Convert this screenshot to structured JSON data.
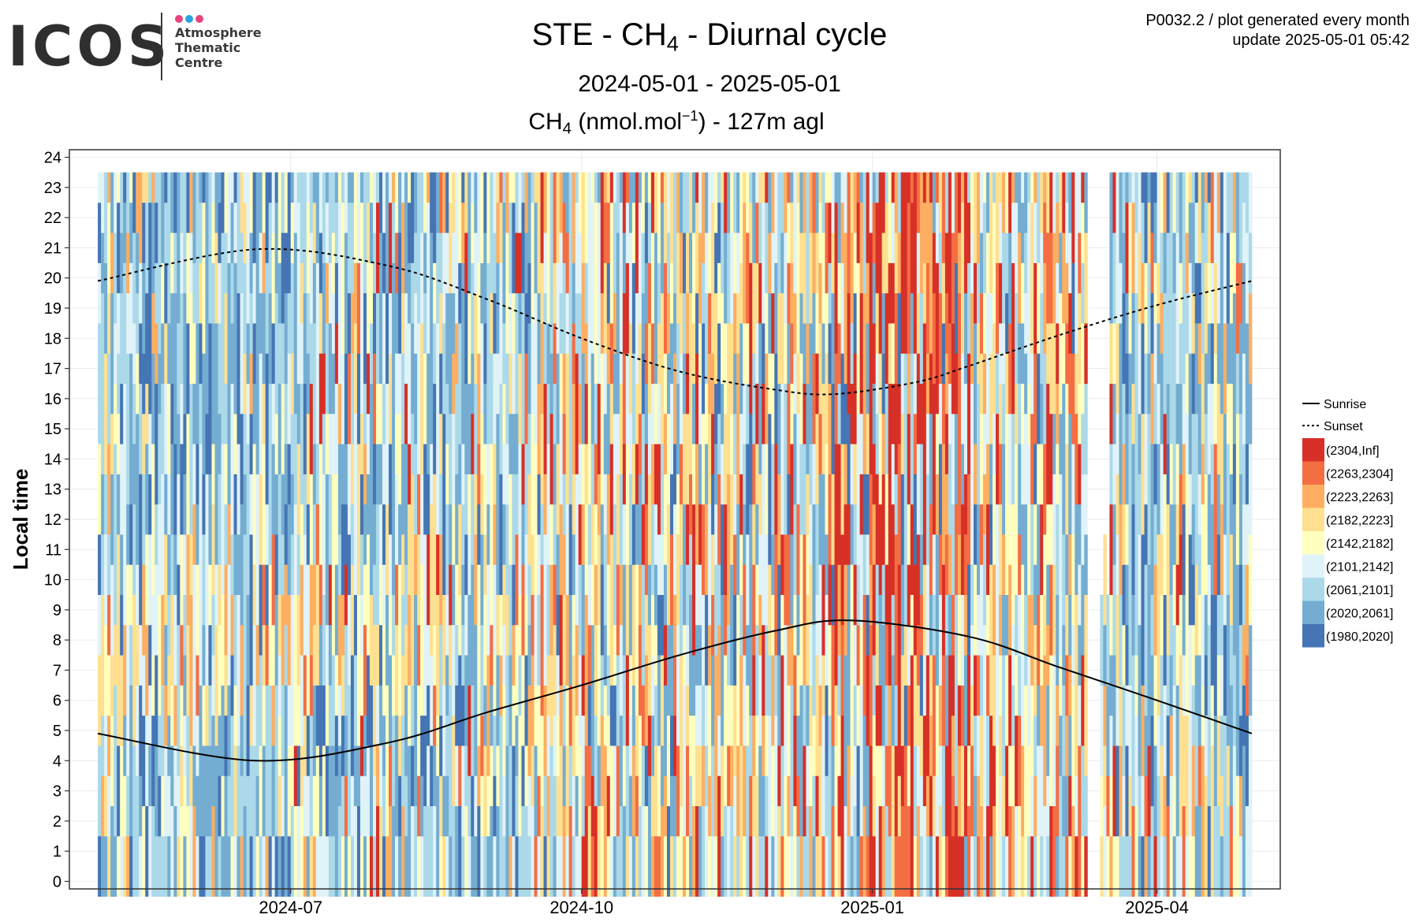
{
  "logo": {
    "wordmark": "ICOS",
    "lines": [
      "Atmosphere",
      "Thematic",
      "Centre"
    ],
    "dot_colors": [
      "#e8437e",
      "#2aa3e0",
      "#e8437e"
    ]
  },
  "header": {
    "title_prefix": "STE - CH",
    "title_sub": "4",
    "title_suffix": " - Diurnal cycle",
    "date_range": "2024-05-01 - 2025-05-01",
    "meta_line1": "P0032.2 / plot generated every month",
    "meta_line2": "update  2025-05-01 05:42"
  },
  "plot_label": {
    "species": "CH",
    "species_sub": "4",
    "unit_open": " (nmol.mol",
    "unit_sup": "−1",
    "unit_close": ") - 127m agl"
  },
  "chart_data": {
    "type": "heatmap",
    "ylabel": "Local time",
    "xlabel": "",
    "x_range": [
      "2024-05-01",
      "2025-05-01"
    ],
    "x_ticks": [
      "2024-07",
      "2024-10",
      "2025-01",
      "2025-04"
    ],
    "x_tick_dates": [
      "2024-07-01",
      "2024-10-01",
      "2025-01-01",
      "2025-04-01"
    ],
    "y_range": [
      0,
      24
    ],
    "y_ticks": [
      0,
      1,
      2,
      3,
      4,
      5,
      6,
      7,
      8,
      9,
      10,
      11,
      12,
      13,
      14,
      15,
      16,
      17,
      18,
      19,
      20,
      21,
      22,
      23,
      24
    ],
    "grid": true,
    "legend_position": "right",
    "legend_lines": [
      {
        "label": "Sunrise",
        "style": "solid"
      },
      {
        "label": "Sunset",
        "style": "dotted"
      }
    ],
    "bins": [
      {
        "label": "(2304,Inf]",
        "color": "#d73027"
      },
      {
        "label": "(2263,2304]",
        "color": "#f46d43"
      },
      {
        "label": "(2223,2263]",
        "color": "#fdae61"
      },
      {
        "label": "(2182,2223]",
        "color": "#fee090"
      },
      {
        "label": "(2142,2182]",
        "color": "#ffffbf"
      },
      {
        "label": "(2101,2142]",
        "color": "#e0f3f8"
      },
      {
        "label": "(2061,2101]",
        "color": "#abd9e9"
      },
      {
        "label": "(2020,2061]",
        "color": "#74add1"
      },
      {
        "label": "(1980,2020]",
        "color": "#4575b4"
      }
    ],
    "sunrise": [
      {
        "date": "2024-05-01",
        "hour": 4.9
      },
      {
        "date": "2024-06-20",
        "hour": 4.0
      },
      {
        "date": "2024-08-01",
        "hour": 4.6
      },
      {
        "date": "2024-09-01",
        "hour": 5.6
      },
      {
        "date": "2024-10-01",
        "hour": 6.5
      },
      {
        "date": "2024-11-01",
        "hour": 7.5
      },
      {
        "date": "2024-12-01",
        "hour": 8.3
      },
      {
        "date": "2024-12-25",
        "hour": 8.65
      },
      {
        "date": "2025-02-01",
        "hour": 8.1
      },
      {
        "date": "2025-03-01",
        "hour": 7.1
      },
      {
        "date": "2025-04-01",
        "hour": 6.0
      },
      {
        "date": "2025-05-01",
        "hour": 4.9
      }
    ],
    "sunset": [
      {
        "date": "2024-05-01",
        "hour": 19.9
      },
      {
        "date": "2024-06-20",
        "hour": 20.95
      },
      {
        "date": "2024-08-01",
        "hour": 20.4
      },
      {
        "date": "2024-09-01",
        "hour": 19.3
      },
      {
        "date": "2024-10-01",
        "hour": 18.0
      },
      {
        "date": "2024-11-01",
        "hour": 16.9
      },
      {
        "date": "2024-12-01",
        "hour": 16.3
      },
      {
        "date": "2024-12-20",
        "hour": 16.15
      },
      {
        "date": "2025-01-15",
        "hour": 16.55
      },
      {
        "date": "2025-02-01",
        "hour": 17.1
      },
      {
        "date": "2025-03-01",
        "hour": 18.1
      },
      {
        "date": "2025-04-01",
        "hour": 19.1
      },
      {
        "date": "2025-05-01",
        "hour": 19.9
      }
    ],
    "missing_periods": [
      {
        "start": "2025-03-10",
        "end": "2025-03-14"
      },
      {
        "start": "2025-03-14",
        "end": "2025-03-17",
        "hours": [
          10,
          24
        ]
      }
    ],
    "periods": [
      {
        "start": "2024-05-01",
        "end": "2024-07-01",
        "hours": [
          0,
          5
        ],
        "bins_weights": [
          0,
          0,
          1,
          2,
          3,
          6,
          10,
          9,
          4
        ]
      },
      {
        "start": "2024-05-01",
        "end": "2024-07-01",
        "hours": [
          5,
          10
        ],
        "bins_weights": [
          0,
          1,
          3,
          6,
          7,
          6,
          5,
          3,
          1
        ]
      },
      {
        "start": "2024-05-01",
        "end": "2024-07-01",
        "hours": [
          10,
          24
        ],
        "bins_weights": [
          0,
          0,
          1,
          2,
          3,
          6,
          9,
          10,
          6
        ]
      },
      {
        "start": "2024-07-01",
        "end": "2024-09-15",
        "hours": [
          0,
          6
        ],
        "bins_weights": [
          1,
          1,
          2,
          3,
          4,
          6,
          8,
          8,
          4
        ]
      },
      {
        "start": "2024-07-01",
        "end": "2024-09-15",
        "hours": [
          6,
          10
        ],
        "bins_weights": [
          1,
          2,
          4,
          6,
          7,
          5,
          4,
          3,
          1
        ]
      },
      {
        "start": "2024-07-01",
        "end": "2024-09-15",
        "hours": [
          10,
          24
        ],
        "bins_weights": [
          1,
          1,
          2,
          3,
          4,
          6,
          8,
          9,
          4
        ]
      },
      {
        "start": "2024-09-15",
        "end": "2024-12-20",
        "hours": [
          0,
          24
        ],
        "bins_weights": [
          3,
          3,
          4,
          5,
          5,
          6,
          6,
          6,
          2
        ]
      },
      {
        "start": "2024-12-20",
        "end": "2025-01-05",
        "hours": [
          0,
          24
        ],
        "bins_weights": [
          14,
          4,
          3,
          3,
          3,
          4,
          4,
          4,
          1
        ]
      },
      {
        "start": "2025-01-05",
        "end": "2025-02-01",
        "hours": [
          0,
          24
        ],
        "bins_weights": [
          12,
          6,
          4,
          3,
          3,
          4,
          4,
          3,
          1
        ]
      },
      {
        "start": "2025-02-01",
        "end": "2025-03-20",
        "hours": [
          0,
          24
        ],
        "bins_weights": [
          3,
          3,
          4,
          5,
          6,
          7,
          6,
          5,
          1
        ]
      },
      {
        "start": "2025-03-20",
        "end": "2025-05-01",
        "hours": [
          0,
          24
        ],
        "bins_weights": [
          1,
          1,
          2,
          3,
          4,
          6,
          8,
          9,
          3
        ]
      }
    ]
  }
}
